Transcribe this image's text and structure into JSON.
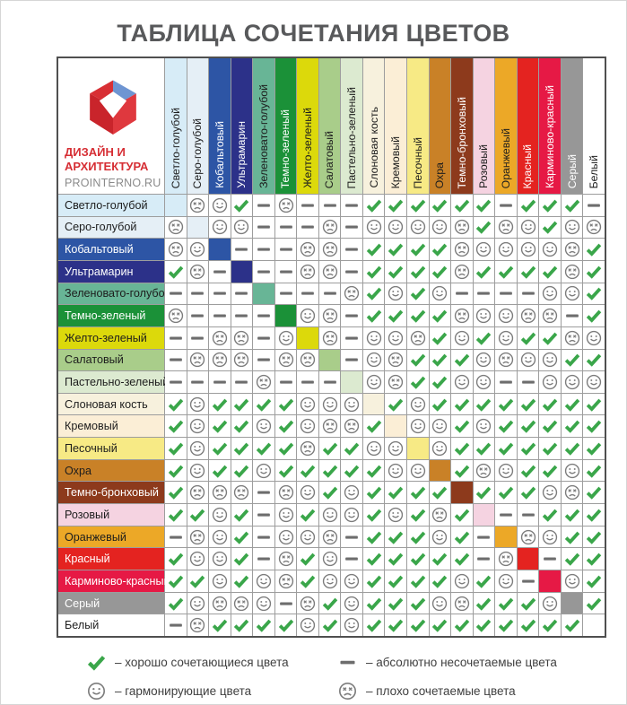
{
  "title": "ТАБЛИЦА СОЧЕТАНИЯ ЦВЕТОВ",
  "logo": {
    "brand_line1": "ДИЗАЙН И",
    "brand_line2": "АРХИТЕКТУРА",
    "site": "PROINTERNO.RU"
  },
  "legend": [
    {
      "symbol": "check",
      "label": "– хорошо сочетающиеся цвета"
    },
    {
      "symbol": "smile",
      "label": "– гармонирующие цвета"
    },
    {
      "symbol": "dash",
      "label": "– абсолютно несочетаемые цвета"
    },
    {
      "symbol": "sad",
      "label": "– плохо сочетаемые цвета"
    }
  ],
  "symbol_colors": {
    "check": "#3aa64a",
    "smile": "#7c7c7c",
    "sad": "#7c7c7c",
    "dash": "#6d6d6d"
  },
  "chart_data": {
    "type": "table",
    "title": "ТАБЛИЦА СОЧЕТАНИЯ ЦВЕТОВ",
    "cell_codes": {
      "C": "хорошо сочетающиеся цвета (галочка)",
      "S": "гармонирующие цвета (смайлик)",
      "X": "плохо сочетаемые цвета (грустный смайлик)",
      "D": "абсолютно несочетаемые цвета (тире)",
      "=": "диагональ — образец цвета"
    },
    "colors": [
      {
        "name": "Светло-голубой",
        "hex": "#d7ecf7",
        "text": "#1d1d1d"
      },
      {
        "name": "Серо-голубой",
        "hex": "#e5eff6",
        "text": "#1d1d1d"
      },
      {
        "name": "Кобальтовый",
        "hex": "#2d55a5",
        "text": "#ffffff"
      },
      {
        "name": "Ультрамарин",
        "hex": "#2c3189",
        "text": "#ffffff"
      },
      {
        "name": "Зеленовато-голубой",
        "hex": "#68b596",
        "text": "#1d1d1d"
      },
      {
        "name": "Темно-зеленый",
        "hex": "#1b9138",
        "text": "#ffffff"
      },
      {
        "name": "Желто-зеленый",
        "hex": "#dcd90b",
        "text": "#1d1d1d"
      },
      {
        "name": "Салатовый",
        "hex": "#a9cd8a",
        "text": "#1d1d1d"
      },
      {
        "name": "Пастельно-зеленый",
        "hex": "#dcead0",
        "text": "#1d1d1d"
      },
      {
        "name": "Слоновая кость",
        "hex": "#f7f1dd",
        "text": "#1d1d1d"
      },
      {
        "name": "Кремовый",
        "hex": "#fbeed6",
        "text": "#1d1d1d"
      },
      {
        "name": "Песочный",
        "hex": "#f7ea85",
        "text": "#1d1d1d"
      },
      {
        "name": "Охра",
        "hex": "#c98127",
        "text": "#1d1d1d"
      },
      {
        "name": "Темно-бронховый",
        "hex": "#8d3a1c",
        "text": "#ffffff"
      },
      {
        "name": "Розовый",
        "hex": "#f5d3e1",
        "text": "#1d1d1d"
      },
      {
        "name": "Оранжевый",
        "hex": "#eca827",
        "text": "#1d1d1d"
      },
      {
        "name": "Красный",
        "hex": "#e42320",
        "text": "#ffffff"
      },
      {
        "name": "Карминово-красный",
        "hex": "#e61945",
        "text": "#ffffff"
      },
      {
        "name": "Серый",
        "hex": "#979797",
        "text": "#ffffff"
      },
      {
        "name": "Белый",
        "hex": "#ffffff",
        "text": "#1d1d1d"
      }
    ],
    "matrix": [
      "=XSCDXDDDCCCCCCDCCCD",
      "X=SSDDDXDSSSSXCXSCSX",
      "XS=DDDXXDCCCCXSSSSXC",
      "CXD=DDXXDCCCCXCCCCXC",
      "DDDD=DDDXCSCSDDDDSSC",
      "XDDDD=SXDCCCCXSSXXDC",
      "DDXXDS=XDSSXCSCSCCXS",
      "DXXXDXX=DSXCCCSXSSCC",
      "DDDDXDDD=SXCCSSDDSSS",
      "CSCCCCSSS=CSCCCCCCCC",
      "CSCCSCSXXC=SSCSCCCCC",
      "CSCCCCXCCSS=SCCCCCCC",
      "CSCCSCCCCCSS=CXSCCSC",
      "CXXXDXSCSCCCC=CCCSXC",
      "CCSCDSCSSCSCXC=DDCCC",
      "DXSCDSSXDCCCSCD=XSCC",
      "CSSCDXCSDCCCCCDX=DCC",
      "CCSCSXCSSCCCCSCSD=SC",
      "CSXXSDXCSCCCSXCCCS=C",
      "DXCCCCSCSCCCCCCCCCC="
    ]
  }
}
